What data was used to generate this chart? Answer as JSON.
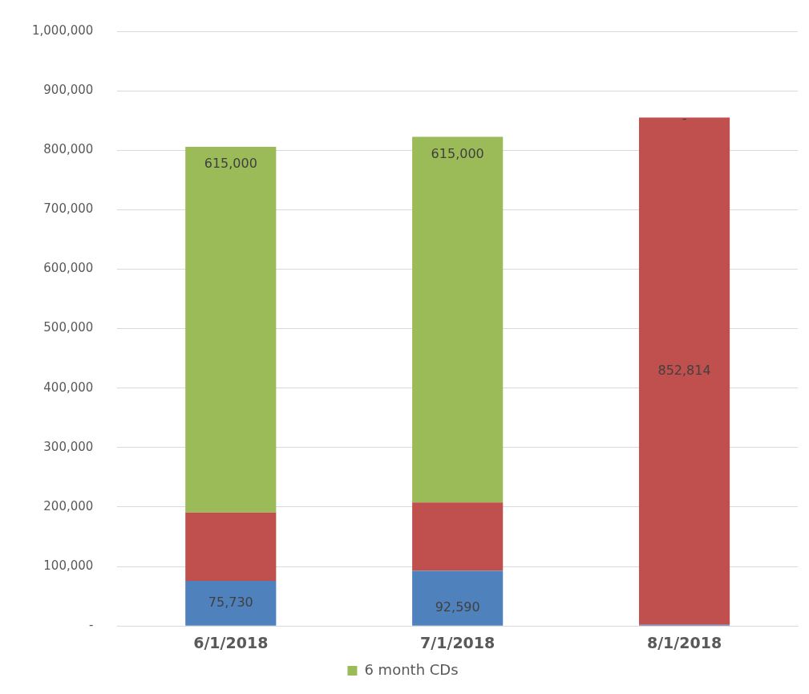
{
  "chart_data": {
    "type": "bar",
    "stacked": true,
    "categories": [
      "6/1/2018",
      "7/1/2018",
      "8/1/2018"
    ],
    "series": [
      {
        "color": "#4f81bd",
        "values": [
          75730,
          92590,
          2000
        ],
        "value_labels": [
          "75,730",
          "92,590",
          null
        ]
      },
      {
        "color": "#c0504d",
        "values": [
          115000,
          115000,
          852814
        ],
        "value_labels": [
          null,
          null,
          "852,814"
        ]
      },
      {
        "name": "6 month CDs",
        "color": "#9bbb59",
        "values": [
          615000,
          615000,
          0
        ],
        "value_labels": [
          "615,000",
          "615,000",
          "-"
        ]
      }
    ],
    "ylim": [
      0,
      1000000
    ],
    "yticks": [
      {
        "value": 0,
        "label": "-"
      },
      {
        "value": 100000,
        "label": "100,000"
      },
      {
        "value": 200000,
        "label": "200,000"
      },
      {
        "value": 300000,
        "label": "300,000"
      },
      {
        "value": 400000,
        "label": "400,000"
      },
      {
        "value": 500000,
        "label": "500,000"
      },
      {
        "value": 600000,
        "label": "600,000"
      },
      {
        "value": 700000,
        "label": "700,000"
      },
      {
        "value": 800000,
        "label": "800,000"
      },
      {
        "value": 900000,
        "label": "900,000"
      },
      {
        "value": 1000000,
        "label": "1,000,000"
      }
    ],
    "grid": "y",
    "legend": "bottom"
  }
}
